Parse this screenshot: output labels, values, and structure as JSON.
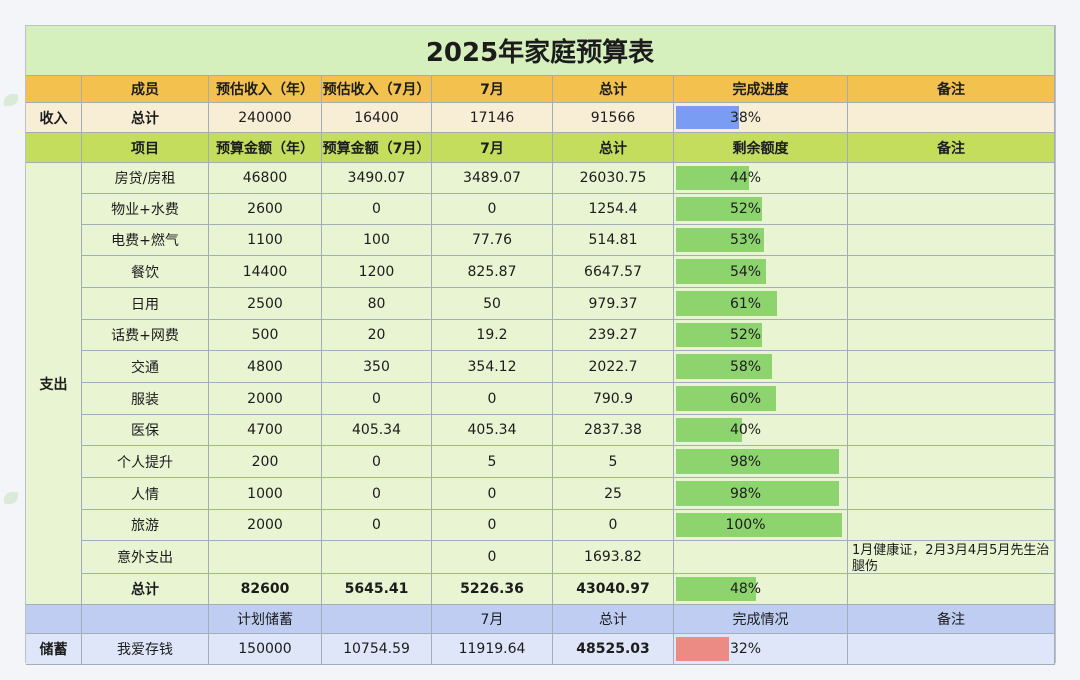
{
  "title": "2025年家庭预算表",
  "colors": {
    "income_bar": "#7b9cf3",
    "expense_bar": "#8dd46f",
    "saving_bar": "#ec8b84"
  },
  "income": {
    "section_label": "收入",
    "headers": [
      "成员",
      "预估收入（年）",
      "预估收入（7月）",
      "7月",
      "总计",
      "完成进度",
      "备注"
    ],
    "row": {
      "name": "总计",
      "year": "240000",
      "month_est": "16400",
      "july": "17146",
      "total": "91566",
      "progress": "38%",
      "progress_value": 0.38,
      "note": ""
    }
  },
  "expense": {
    "section_label": "支出",
    "headers": [
      "项目",
      "预算金额（年）",
      "预算金额（7月）",
      "7月",
      "总计",
      "剩余额度",
      "备注"
    ],
    "rows": [
      {
        "name": "房贷/房租",
        "year": "46800",
        "month_est": "3490.07",
        "july": "3489.07",
        "total": "26030.75",
        "remain": "44%",
        "remain_value": 0.44,
        "note": ""
      },
      {
        "name": "物业+水费",
        "year": "2600",
        "month_est": "0",
        "july": "0",
        "total": "1254.4",
        "remain": "52%",
        "remain_value": 0.52,
        "note": ""
      },
      {
        "name": "电费+燃气",
        "year": "1100",
        "month_est": "100",
        "july": "77.76",
        "total": "514.81",
        "remain": "53%",
        "remain_value": 0.53,
        "note": ""
      },
      {
        "name": "餐饮",
        "year": "14400",
        "month_est": "1200",
        "july": "825.87",
        "total": "6647.57",
        "remain": "54%",
        "remain_value": 0.54,
        "note": ""
      },
      {
        "name": "日用",
        "year": "2500",
        "month_est": "80",
        "july": "50",
        "total": "979.37",
        "remain": "61%",
        "remain_value": 0.61,
        "note": ""
      },
      {
        "name": "话费+网费",
        "year": "500",
        "month_est": "20",
        "july": "19.2",
        "total": "239.27",
        "remain": "52%",
        "remain_value": 0.52,
        "note": ""
      },
      {
        "name": "交通",
        "year": "4800",
        "month_est": "350",
        "july": "354.12",
        "total": "2022.7",
        "remain": "58%",
        "remain_value": 0.58,
        "note": ""
      },
      {
        "name": "服装",
        "year": "2000",
        "month_est": "0",
        "july": "0",
        "total": "790.9",
        "remain": "60%",
        "remain_value": 0.6,
        "note": ""
      },
      {
        "name": "医保",
        "year": "4700",
        "month_est": "405.34",
        "july": "405.34",
        "total": "2837.38",
        "remain": "40%",
        "remain_value": 0.4,
        "note": ""
      },
      {
        "name": "个人提升",
        "year": "200",
        "month_est": "0",
        "july": "5",
        "total": "5",
        "remain": "98%",
        "remain_value": 0.98,
        "note": ""
      },
      {
        "name": "人情",
        "year": "1000",
        "month_est": "0",
        "july": "0",
        "total": "25",
        "remain": "98%",
        "remain_value": 0.98,
        "note": ""
      },
      {
        "name": "旅游",
        "year": "2000",
        "month_est": "0",
        "july": "0",
        "total": "0",
        "remain": "100%",
        "remain_value": 1.0,
        "note": ""
      },
      {
        "name": "意外支出",
        "year": "",
        "month_est": "",
        "july": "0",
        "total": "1693.82",
        "remain": "",
        "remain_value": 0,
        "note": "1月健康证，2月3月4月5月先生治腿伤"
      }
    ],
    "total": {
      "name": "总计",
      "year": "82600",
      "month_est": "5645.41",
      "july": "5226.36",
      "total": "43040.97",
      "remain": "48%",
      "remain_value": 0.48,
      "note": ""
    }
  },
  "savings": {
    "section_label": "储蓄",
    "headers": [
      "",
      "计划储蓄",
      "",
      "7月",
      "总计",
      "完成情况",
      "备注"
    ],
    "row": {
      "name": "我爱存钱",
      "year": "150000",
      "month_est": "10754.59",
      "july": "11919.64",
      "total": "48525.03",
      "progress": "32%",
      "progress_value": 0.32,
      "note": ""
    }
  }
}
